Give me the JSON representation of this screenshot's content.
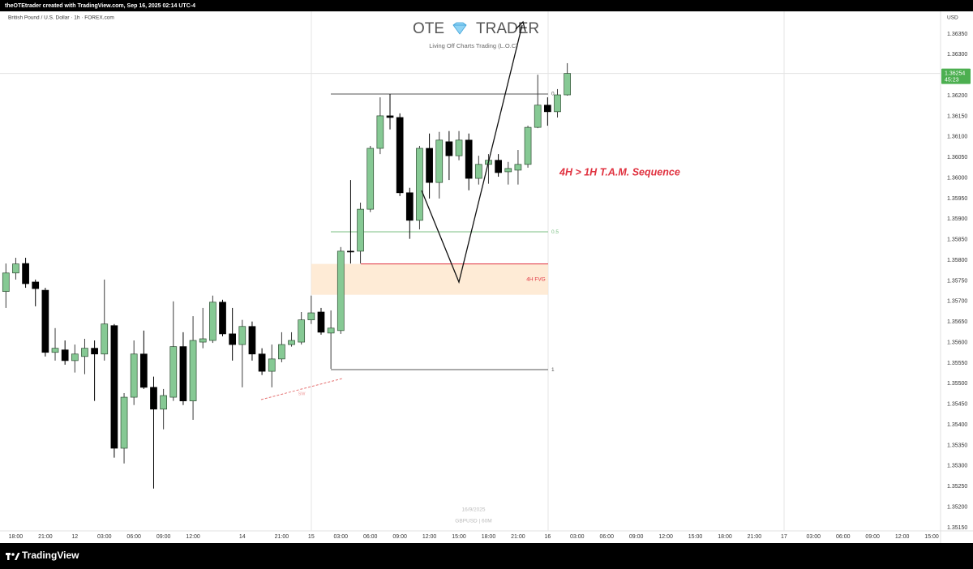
{
  "header": "theOTEtrader created with TradingView.com, Sep 16, 2025 02:14 UTC-4",
  "footer_brand": "TradingView",
  "chart_data": {
    "type": "candlestick",
    "title": "British Pound / U.S. Dollar · 1h · FOREX.com",
    "currency": "USD",
    "up_color": "#86c994",
    "down_color": "#000000",
    "open": [
      1.35724,
      1.35769,
      1.35792,
      1.35747,
      1.35727,
      1.35576,
      1.35582,
      1.35556,
      1.35566,
      1.35586,
      1.35572,
      1.35641,
      1.35343,
      1.35467,
      1.35572,
      1.35491,
      1.35438,
      1.35467,
      1.3559,
      1.35458,
      1.35601,
      1.35605,
      1.35698,
      1.35621,
      1.35595,
      1.35639,
      1.35572,
      1.3553,
      1.3556,
      1.35595,
      1.35601,
      1.35655,
      1.35674,
      1.35623,
      1.35629,
      1.35822,
      1.35822,
      1.35924,
      1.36072,
      1.36151,
      1.36147,
      1.35964,
      1.35897,
      1.36072,
      1.35989,
      1.36088,
      1.36054,
      1.36092,
      1.35999,
      1.36033,
      1.36043,
      1.36015,
      1.36019,
      1.36033,
      1.36123,
      1.36177,
      1.36161,
      1.36202
    ],
    "high": [
      1.35792,
      1.35806,
      1.35806,
      1.35753,
      1.35733,
      1.35635,
      1.35605,
      1.35595,
      1.35609,
      1.35605,
      1.35753,
      1.35645,
      1.35477,
      1.35605,
      1.35629,
      1.35517,
      1.35487,
      1.357,
      1.35625,
      1.35664,
      1.35684,
      1.35714,
      1.35704,
      1.35684,
      1.35655,
      1.35651,
      1.35586,
      1.35595,
      1.35625,
      1.35625,
      1.35674,
      1.35714,
      1.35684,
      1.35678,
      1.35832,
      1.35995,
      1.3594,
      1.36078,
      1.36196,
      1.36204,
      1.36157,
      1.35976,
      1.36078,
      1.36108,
      1.36112,
      1.36114,
      1.36114,
      1.36108,
      1.36054,
      1.36058,
      1.36058,
      1.36039,
      1.36068,
      1.36127,
      1.36251,
      1.36196,
      1.36216,
      1.36279
    ],
    "low": [
      1.35684,
      1.35753,
      1.35733,
      1.35688,
      1.35566,
      1.35556,
      1.35546,
      1.35527,
      1.35523,
      1.35458,
      1.35556,
      1.3532,
      1.35306,
      1.35448,
      1.35487,
      1.35245,
      1.35389,
      1.35458,
      1.35448,
      1.35412,
      1.35586,
      1.35599,
      1.35615,
      1.35556,
      1.35491,
      1.35556,
      1.35521,
      1.35491,
      1.35552,
      1.3559,
      1.35595,
      1.35645,
      1.35619,
      1.35536,
      1.35621,
      1.35792,
      1.35792,
      1.35917,
      1.36058,
      1.36118,
      1.35956,
      1.35852,
      1.35875,
      1.3595,
      1.3595,
      1.35995,
      1.36043,
      1.3597,
      1.35984,
      1.35986,
      1.36003,
      1.35984,
      1.35984,
      1.36025,
      1.36121,
      1.36127,
      1.36147,
      1.362
    ],
    "close": [
      1.35769,
      1.35791,
      1.35743,
      1.35731,
      1.35576,
      1.35586,
      1.35556,
      1.35572,
      1.35586,
      1.35572,
      1.35645,
      1.35343,
      1.35467,
      1.35572,
      1.35491,
      1.35438,
      1.35471,
      1.3559,
      1.35458,
      1.35605,
      1.35609,
      1.35698,
      1.35621,
      1.35595,
      1.35639,
      1.35572,
      1.3553,
      1.3556,
      1.35595,
      1.35605,
      1.35655,
      1.35672,
      1.35625,
      1.35635,
      1.35822,
      1.3582,
      1.35924,
      1.36072,
      1.36151,
      1.36147,
      1.35964,
      1.35897,
      1.36072,
      1.35989,
      1.36092,
      1.36054,
      1.36092,
      1.35999,
      1.36033,
      1.36043,
      1.36013,
      1.36023,
      1.36033,
      1.36123,
      1.36177,
      1.36161,
      1.36202,
      1.36254
    ],
    "xlim": [
      -0.6,
      94.9
    ],
    "xticks": [
      {
        "value": 1,
        "label": "18:00"
      },
      {
        "value": 4,
        "label": "21:00"
      },
      {
        "value": 7,
        "label": "12"
      },
      {
        "value": 10,
        "label": "03:00"
      },
      {
        "value": 13,
        "label": "06:00"
      },
      {
        "value": 16,
        "label": "09:00"
      },
      {
        "value": 19,
        "label": "12:00"
      },
      {
        "value": 24,
        "label": "14"
      },
      {
        "value": 28,
        "label": "21:00"
      },
      {
        "value": 31,
        "label": "15"
      },
      {
        "value": 34,
        "label": "03:00"
      },
      {
        "value": 37,
        "label": "06:00"
      },
      {
        "value": 40,
        "label": "09:00"
      },
      {
        "value": 43,
        "label": "12:00"
      },
      {
        "value": 46,
        "label": "15:00"
      },
      {
        "value": 49,
        "label": "18:00"
      },
      {
        "value": 52,
        "label": "21:00"
      },
      {
        "value": 55,
        "label": "16"
      },
      {
        "value": 58,
        "label": "03:00"
      },
      {
        "value": 61,
        "label": "06:00"
      },
      {
        "value": 64,
        "label": "09:00"
      },
      {
        "value": 67,
        "label": "12:00"
      },
      {
        "value": 70,
        "label": "15:00"
      },
      {
        "value": 73,
        "label": "18:00"
      },
      {
        "value": 76,
        "label": "21:00"
      },
      {
        "value": 79,
        "label": "17"
      },
      {
        "value": 82,
        "label": "03:00"
      },
      {
        "value": 85,
        "label": "06:00"
      },
      {
        "value": 88,
        "label": "09:00"
      },
      {
        "value": 91,
        "label": "12:00"
      },
      {
        "value": 94,
        "label": "15:00"
      }
    ],
    "ylim": [
      1.35142,
      1.36405
    ],
    "yticks": [
      {
        "value": 1.3515,
        "label": "1.35150"
      },
      {
        "value": 1.352,
        "label": "1.35200"
      },
      {
        "value": 1.3525,
        "label": "1.35250"
      },
      {
        "value": 1.353,
        "label": "1.35300"
      },
      {
        "value": 1.3535,
        "label": "1.35350"
      },
      {
        "value": 1.354,
        "label": "1.35400"
      },
      {
        "value": 1.3545,
        "label": "1.35450"
      },
      {
        "value": 1.355,
        "label": "1.35500"
      },
      {
        "value": 1.3555,
        "label": "1.35550"
      },
      {
        "value": 1.356,
        "label": "1.35600"
      },
      {
        "value": 1.3565,
        "label": "1.35650"
      },
      {
        "value": 1.357,
        "label": "1.35700"
      },
      {
        "value": 1.3575,
        "label": "1.35750"
      },
      {
        "value": 1.358,
        "label": "1.35800"
      },
      {
        "value": 1.3585,
        "label": "1.35850"
      },
      {
        "value": 1.359,
        "label": "1.35900"
      },
      {
        "value": 1.3595,
        "label": "1.35950"
      },
      {
        "value": 1.36,
        "label": "1.36000"
      },
      {
        "value": 1.3605,
        "label": "1.36050"
      },
      {
        "value": 1.361,
        "label": "1.36100"
      },
      {
        "value": 1.3615,
        "label": "1.36150"
      },
      {
        "value": 1.362,
        "label": "1.36200"
      },
      {
        "value": 1.3625,
        "label": "1.36250"
      },
      {
        "value": 1.363,
        "label": "1.36300"
      },
      {
        "value": 1.3635,
        "label": "1.36350"
      }
    ],
    "grid": false,
    "last_price": 1.36254,
    "countdown": "45:23",
    "fib": {
      "high": 1.36204,
      "low": 1.35534,
      "levels": [
        0,
        0.5,
        1
      ]
    },
    "fvg": {
      "label": "4H FVG",
      "low": 1.35716,
      "high": 1.35791
    },
    "sequence_label": "4H > 1H T.A.M. Sequence",
    "sw_label": "SW",
    "watermark": {
      "brand_left": "OTE",
      "brand_right": "TRADER",
      "tagline": "Living Off Charts Trading (L.O.C)",
      "date": "16/9/2025",
      "symbol": "GBPUSD | 60M"
    }
  }
}
